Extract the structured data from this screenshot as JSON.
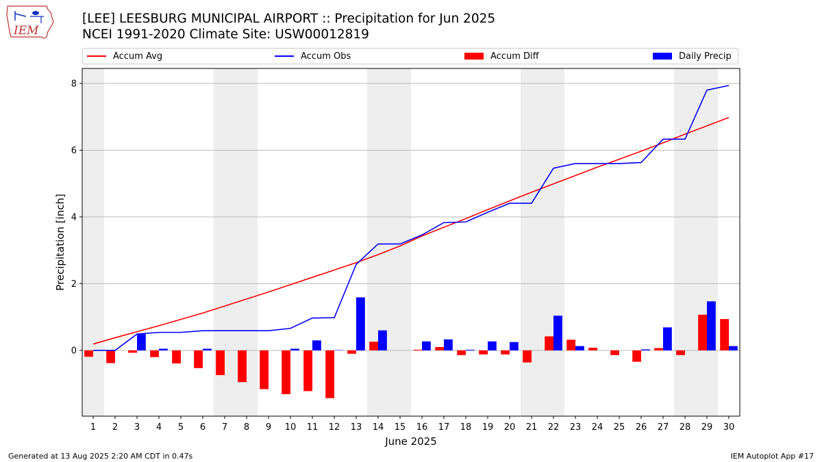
{
  "title": "[LEE] LEESBURG MUNICIPAL AIRPORT :: Precipitation for Jun 2025",
  "subtitle": "NCEI 1991-2020 Climate Site: USW00012819",
  "logo_text": "IEM",
  "footer_left": "Generated at 13 Aug 2025 2:20 AM CDT in 0.47s",
  "footer_right": "IEM Autoplot App #17",
  "colors": {
    "avg": "#ff0000",
    "obs": "#0000ff",
    "diff": "#ff0000",
    "daily": "#0000ff",
    "weekend": "#eeeeee",
    "grid": "#b0b0b0"
  },
  "legend": [
    "Accum Avg",
    "Accum Obs",
    "Accum Diff",
    "Daily Precip"
  ],
  "chart_data": {
    "type": "bar",
    "xlabel": "June 2025",
    "ylabel": "Precipitation [inch]",
    "xlim": [
      0.5,
      30.5
    ],
    "ylim": [
      -1.97,
      8.45
    ],
    "yticks": [
      0,
      2,
      4,
      6,
      8
    ],
    "grid": "horizontal",
    "legend_position": "top",
    "shaded_days": [
      1,
      7,
      8,
      14,
      15,
      21,
      22,
      28,
      29
    ],
    "days": [
      1,
      2,
      3,
      4,
      5,
      6,
      7,
      8,
      9,
      10,
      11,
      12,
      13,
      14,
      15,
      16,
      17,
      18,
      19,
      20,
      21,
      22,
      23,
      24,
      25,
      26,
      27,
      28,
      29,
      30
    ],
    "series": [
      {
        "name": "Accum Avg",
        "kind": "line",
        "values": [
          0.19,
          0.38,
          0.56,
          0.74,
          0.93,
          1.12,
          1.33,
          1.54,
          1.75,
          1.97,
          2.19,
          2.41,
          2.63,
          2.87,
          3.13,
          3.43,
          3.69,
          3.95,
          4.22,
          4.48,
          4.74,
          4.99,
          5.24,
          5.49,
          5.73,
          5.97,
          6.22,
          6.48,
          6.73,
          6.98
        ]
      },
      {
        "name": "Accum Obs",
        "kind": "line",
        "values": [
          0.0,
          0.0,
          0.49,
          0.54,
          0.54,
          0.59,
          0.59,
          0.59,
          0.59,
          0.66,
          0.97,
          0.98,
          2.58,
          3.19,
          3.19,
          3.46,
          3.83,
          3.85,
          4.14,
          4.41,
          4.41,
          5.46,
          5.6,
          5.6,
          5.6,
          5.63,
          6.33,
          6.33,
          7.8,
          7.94
        ]
      },
      {
        "name": "Accum Diff",
        "kind": "bar",
        "values": [
          -0.19,
          -0.38,
          -0.07,
          -0.2,
          -0.39,
          -0.53,
          -0.74,
          -0.95,
          -1.16,
          -1.31,
          -1.22,
          -1.43,
          -0.1,
          0.26,
          0.0,
          0.02,
          0.1,
          -0.14,
          -0.12,
          -0.12,
          -0.36,
          0.42,
          0.32,
          0.08,
          -0.14,
          -0.34,
          0.07,
          -0.14,
          1.07,
          0.94
        ]
      },
      {
        "name": "Daily Precip",
        "kind": "bar",
        "values": [
          0.0,
          0.0,
          0.49,
          0.05,
          0.0,
          0.05,
          0.0,
          0.0,
          0.0,
          0.05,
          0.3,
          0.01,
          1.59,
          0.6,
          0.0,
          0.27,
          0.33,
          0.02,
          0.27,
          0.25,
          0.0,
          1.04,
          0.13,
          0.0,
          0.0,
          0.03,
          0.69,
          0.0,
          1.47,
          0.13
        ]
      }
    ]
  }
}
